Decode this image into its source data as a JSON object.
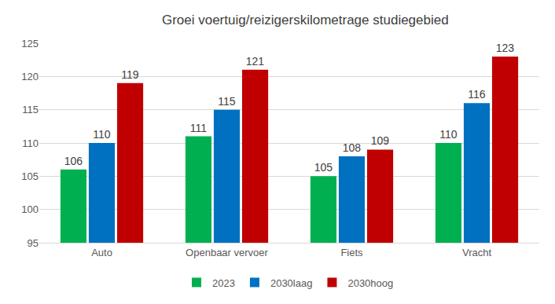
{
  "chart_data": {
    "type": "bar",
    "title": "Groei voertuig/reizigerskilometrage studiegebied",
    "categories": [
      "Auto",
      "Openbaar vervoer",
      "Fiets",
      "Vracht"
    ],
    "series": [
      {
        "name": "2023",
        "color": "#00b050",
        "values": [
          106,
          111,
          105,
          110
        ]
      },
      {
        "name": "2030laag",
        "color": "#0070c0",
        "values": [
          110,
          115,
          108,
          116
        ]
      },
      {
        "name": "2030hoog",
        "color": "#c00000",
        "values": [
          119,
          121,
          109,
          123
        ]
      }
    ],
    "ylim": [
      95,
      125
    ],
    "yticks": [
      95,
      100,
      105,
      110,
      115,
      120,
      125
    ],
    "grid": true,
    "legend": "bottom",
    "data_labels": true
  }
}
